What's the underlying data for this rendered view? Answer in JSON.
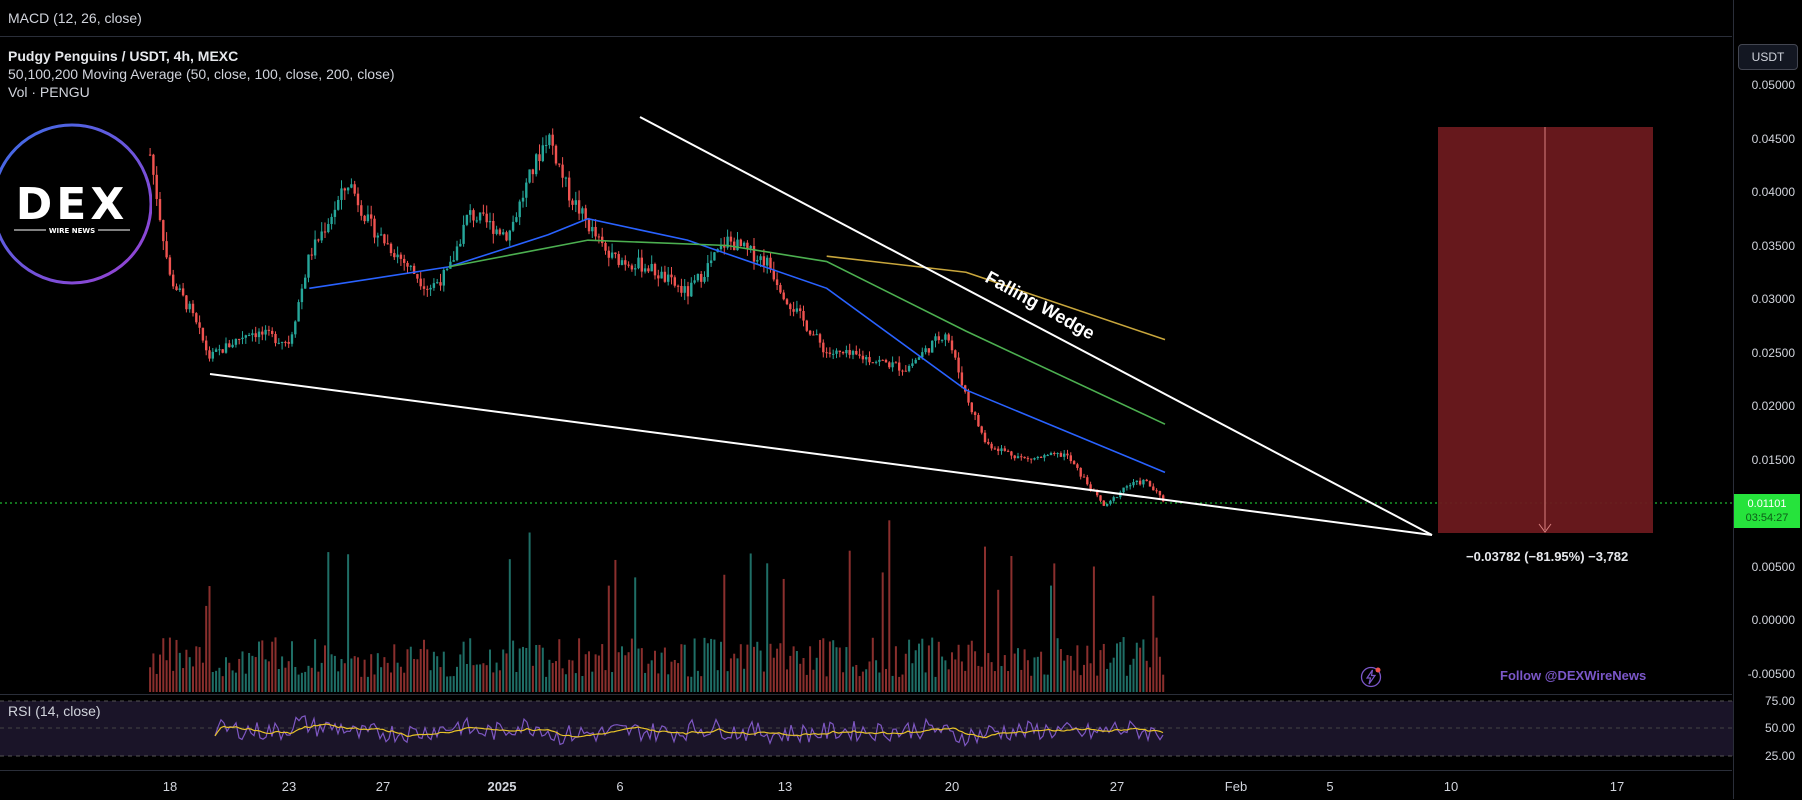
{
  "panes": {
    "macd_title": "MACD (12, 26, close)",
    "rsi_title": "RSI (14, close)"
  },
  "legend": {
    "symbol": "Pudgy Penguins / USDT, 4h, MEXC",
    "ma": "50,100,200 Moving Average (50, close, 100, close, 200, close)",
    "vol": "Vol · PENGU"
  },
  "logo": {
    "main": "DEX",
    "sub": "WIRE NEWS"
  },
  "price_axis": {
    "currency": "USDT",
    "ticks": [
      "0.05000",
      "0.04500",
      "0.04000",
      "0.03500",
      "0.03000",
      "0.02500",
      "0.02000",
      "0.01500",
      "0.01000",
      "0.00500",
      "0.00000",
      "-0.00500"
    ],
    "rsi_ticks": [
      "75.00",
      "50.00",
      "25.00"
    ],
    "last_price": "0.01101",
    "countdown": "03:54:27"
  },
  "time_axis": {
    "ticks": [
      "18",
      "23",
      "27",
      "2025",
      "6",
      "13",
      "20",
      "27",
      "Feb",
      "5",
      "10",
      "17"
    ]
  },
  "annotations": {
    "pattern": "Falling Wedge",
    "measure": "−0.03782 (−81.95%) −3,782",
    "follow": "Follow @DEXWireNews"
  },
  "colors": {
    "up": "#26a69a",
    "down": "#ef5350",
    "ma50": "#2962ff",
    "ma100": "#4caf50",
    "ma200": "#c8a63c",
    "rsi": "#7e57c2",
    "rsi_ma": "#e6c229",
    "target_box": "#7a1b20",
    "last_price": "#26e33c"
  },
  "chart_data": {
    "type": "candlestick",
    "title": "Pudgy Penguins / USDT, 4h, MEXC",
    "ylim": [
      -0.0075,
      0.0525
    ],
    "x_labels": [
      "18",
      "23",
      "27",
      "2025",
      "6",
      "13",
      "20",
      "27",
      "Feb",
      "5",
      "10",
      "17"
    ],
    "close_path": [
      [
        "Dec 17",
        0.0435
      ],
      [
        "Dec 18",
        0.032
      ],
      [
        "Dec 19",
        0.029
      ],
      [
        "Dec 20",
        0.0245
      ],
      [
        "Dec 22",
        0.027
      ],
      [
        "Dec 24",
        0.026
      ],
      [
        "Dec 25",
        0.034
      ],
      [
        "Dec 27",
        0.041
      ],
      [
        "Dec 28",
        0.037
      ],
      [
        "Dec 30",
        0.033
      ],
      [
        "Dec 31",
        0.031
      ],
      [
        "Jan 1",
        0.0325
      ],
      [
        "Jan 2",
        0.038
      ],
      [
        "Jan 4",
        0.036
      ],
      [
        "Jan 5",
        0.041
      ],
      [
        "Jan 6",
        0.0455
      ],
      [
        "Jan 7",
        0.04
      ],
      [
        "Jan 9",
        0.034
      ],
      [
        "Jan 11",
        0.033
      ],
      [
        "Jan 13",
        0.0305
      ],
      [
        "Jan 15",
        0.0355
      ],
      [
        "Jan 17",
        0.0335
      ],
      [
        "Jan 18",
        0.03
      ],
      [
        "Jan 20",
        0.025
      ],
      [
        "Jan 22",
        0.0245
      ],
      [
        "Jan 24",
        0.0235
      ],
      [
        "Jan 26",
        0.027
      ],
      [
        "Jan 27",
        0.021
      ],
      [
        "Jan 28",
        0.0165
      ],
      [
        "Jan 30",
        0.015
      ],
      [
        "Feb 1",
        0.0155
      ],
      [
        "Feb 3",
        0.0105
      ],
      [
        "Feb 4",
        0.0125
      ],
      [
        "Feb 5",
        0.013
      ],
      [
        "Feb 6",
        0.01101
      ]
    ],
    "moving_averages": [
      {
        "name": "MA 50",
        "values": [
          [
            "Dec 25",
            0.031
          ],
          [
            "Jan 1",
            0.033
          ],
          [
            "Jan 6",
            0.036
          ],
          [
            "Jan 8",
            0.0375
          ],
          [
            "Jan 13",
            0.0355
          ],
          [
            "Jan 20",
            0.031
          ],
          [
            "Jan 27",
            0.0215
          ],
          [
            "Feb 6",
            0.0138
          ]
        ]
      },
      {
        "name": "MA 100",
        "values": [
          [
            "Jan 1",
            0.033
          ],
          [
            "Jan 8",
            0.0355
          ],
          [
            "Jan 15",
            0.035
          ],
          [
            "Jan 20",
            0.0335
          ],
          [
            "Jan 27",
            0.027
          ],
          [
            "Feb 6",
            0.0183
          ]
        ]
      },
      {
        "name": "MA 200",
        "values": [
          [
            "Jan 20",
            0.034
          ],
          [
            "Jan 27",
            0.0325
          ],
          [
            "Feb 6",
            0.0262
          ]
        ]
      }
    ],
    "wedge_lines": {
      "upper": [
        [
          "Jan 6",
          0.0468
        ],
        [
          "Feb 9",
          0.0083
        ]
      ],
      "lower": [
        [
          "Dec 19",
          0.023
        ],
        [
          "Feb 9",
          0.0083
        ]
      ]
    },
    "target_box": {
      "from": 0.0461,
      "to": 0.0083,
      "change": -0.03782,
      "percent": -81.95
    },
    "rsi_range": [
      25,
      75
    ]
  }
}
